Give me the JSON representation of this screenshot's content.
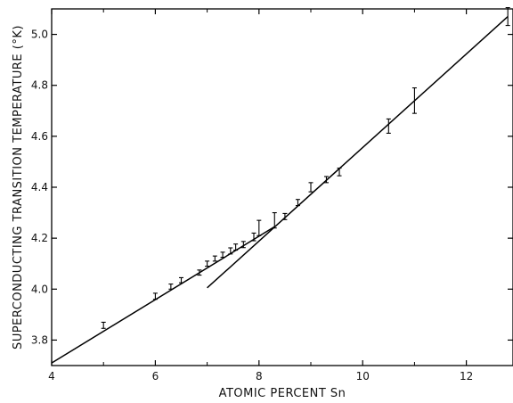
{
  "chart_data": {
    "type": "scatter",
    "title": "",
    "xlabel": "ATOMIC  PERCENT  Sn",
    "ylabel": "SUPERCONDUCTING TRANSITION  TEMPERATURE (°K)",
    "xlim": [
      4,
      12.9
    ],
    "ylim": [
      3.7,
      5.1
    ],
    "x_ticks": [
      4,
      6,
      8,
      10,
      12
    ],
    "y_ticks": [
      3.8,
      4.0,
      4.2,
      4.4,
      4.6,
      4.8,
      5.0
    ],
    "x_tick_labels": [
      "4",
      "6",
      "8",
      "10",
      "12"
    ],
    "y_tick_labels": [
      "3.8",
      "4.0",
      "4.2",
      "4.4",
      "4.6",
      "4.8",
      "5.0"
    ],
    "grid": false,
    "series": [
      {
        "x": [
          5.0,
          6.0,
          6.3,
          6.5,
          6.85,
          7.0,
          7.15,
          7.3,
          7.45,
          7.55,
          7.7,
          7.9,
          8.0,
          8.3,
          8.5,
          8.75,
          9.0,
          9.3,
          9.55,
          10.5,
          11.0,
          12.8
        ],
        "y": [
          3.858,
          3.972,
          4.01,
          4.035,
          4.065,
          4.1,
          4.12,
          4.135,
          4.15,
          4.165,
          4.175,
          4.205,
          4.24,
          4.27,
          4.285,
          4.34,
          4.4,
          4.43,
          4.46,
          4.64,
          4.74,
          5.07
        ],
        "err": [
          0.012,
          0.012,
          0.01,
          0.01,
          0.01,
          0.01,
          0.01,
          0.01,
          0.012,
          0.012,
          0.012,
          0.015,
          0.03,
          0.03,
          0.012,
          0.012,
          0.018,
          0.012,
          0.015,
          0.028,
          0.05,
          0.035
        ]
      }
    ],
    "fit_lines": [
      {
        "x": [
          4.0,
          8.3
        ],
        "y": [
          3.71,
          4.245
        ]
      },
      {
        "x": [
          7.0,
          12.8
        ],
        "y": [
          4.005,
          5.07
        ]
      }
    ]
  }
}
